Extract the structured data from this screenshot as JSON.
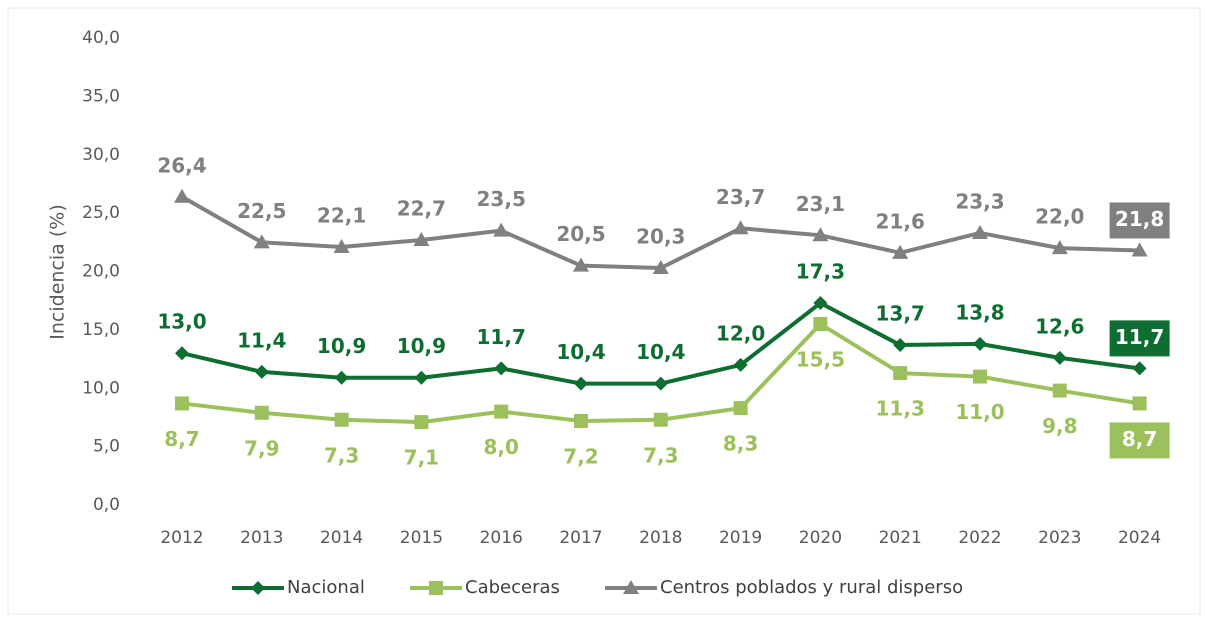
{
  "chart_data": {
    "type": "line",
    "y_label": "Incidencia (%)",
    "categories": [
      "2012",
      "2013",
      "2014",
      "2015",
      "2016",
      "2017",
      "2018",
      "2019",
      "2020",
      "2021",
      "2022",
      "2023",
      "2024"
    ],
    "series": [
      {
        "name": "Nacional",
        "color": "#0e6e31",
        "marker": "diamond",
        "values": [
          13.0,
          11.4,
          10.9,
          10.9,
          11.7,
          10.4,
          10.4,
          12.0,
          17.3,
          13.7,
          13.8,
          12.6,
          11.7
        ],
        "value_labels": [
          "13,0",
          "11,4",
          "10,9",
          "10,9",
          "11,7",
          "10,4",
          "10,4",
          "12,0",
          "17,3",
          "13,7",
          "13,8",
          "12,6",
          "11,7"
        ]
      },
      {
        "name": "Cabeceras",
        "color": "#9cc05b",
        "marker": "square",
        "values": [
          8.7,
          7.9,
          7.3,
          7.1,
          8.0,
          7.2,
          7.3,
          8.3,
          15.5,
          11.3,
          11.0,
          9.8,
          8.7
        ],
        "value_labels": [
          "8,7",
          "7,9",
          "7,3",
          "7,1",
          "8,0",
          "7,2",
          "7,3",
          "8,3",
          "15,5",
          "11,3",
          "11,0",
          "9,8",
          "8,7"
        ]
      },
      {
        "name": "Centros poblados y rural disperso",
        "color": "#808080",
        "marker": "triangle",
        "values": [
          26.4,
          22.5,
          22.1,
          22.7,
          23.5,
          20.5,
          20.3,
          23.7,
          23.1,
          21.6,
          23.3,
          22.0,
          21.8
        ],
        "value_labels": [
          "26,4",
          "22,5",
          "22,1",
          "22,7",
          "23,5",
          "20,5",
          "20,3",
          "23,7",
          "23,1",
          "21,6",
          "23,3",
          "22,0",
          "21,8"
        ]
      }
    ],
    "ylim": [
      0,
      40
    ],
    "yticks": [
      {
        "value": 0,
        "label": "0,0"
      },
      {
        "value": 5,
        "label": "5,0"
      },
      {
        "value": 10,
        "label": "10,0"
      },
      {
        "value": 15,
        "label": "15,0"
      },
      {
        "value": 20,
        "label": "20,0"
      },
      {
        "value": 25,
        "label": "25,0"
      },
      {
        "value": 30,
        "label": "30,0"
      },
      {
        "value": 35,
        "label": "35,0"
      },
      {
        "value": 40,
        "label": "40,0"
      }
    ],
    "grid": false,
    "legend": "bottom"
  }
}
